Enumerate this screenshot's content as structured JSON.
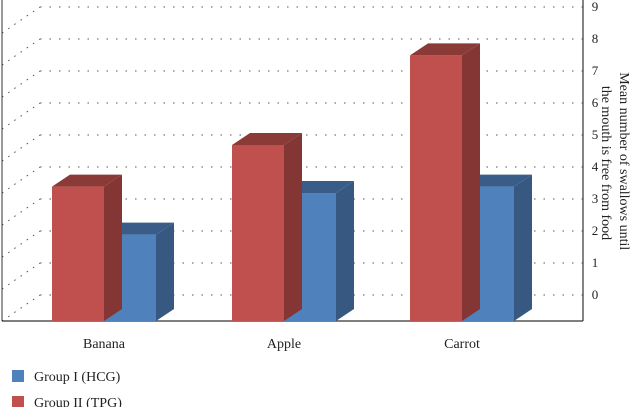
{
  "chart_data": {
    "type": "bar",
    "categories": [
      "Banana",
      "Apple",
      "Carrot"
    ],
    "series": [
      {
        "name": "Group I (HCG)",
        "values": [
          2.7,
          4.0,
          4.2
        ],
        "color": "#4F81BD"
      },
      {
        "name": "Group II (TPG)",
        "values": [
          4.2,
          5.5,
          8.3
        ],
        "color": "#C0504D"
      }
    ],
    "ylabel_lines": [
      "Mean number of swallows until",
      "the mouth is free from food"
    ],
    "ylim": [
      0,
      9
    ],
    "yticks": [
      "0",
      "1",
      "2",
      "3",
      "4",
      "5",
      "6",
      "7",
      "8",
      "9"
    ],
    "y_axis_position": "right",
    "grid": true,
    "legend_position": "bottom-left",
    "style": "3d-bar"
  }
}
